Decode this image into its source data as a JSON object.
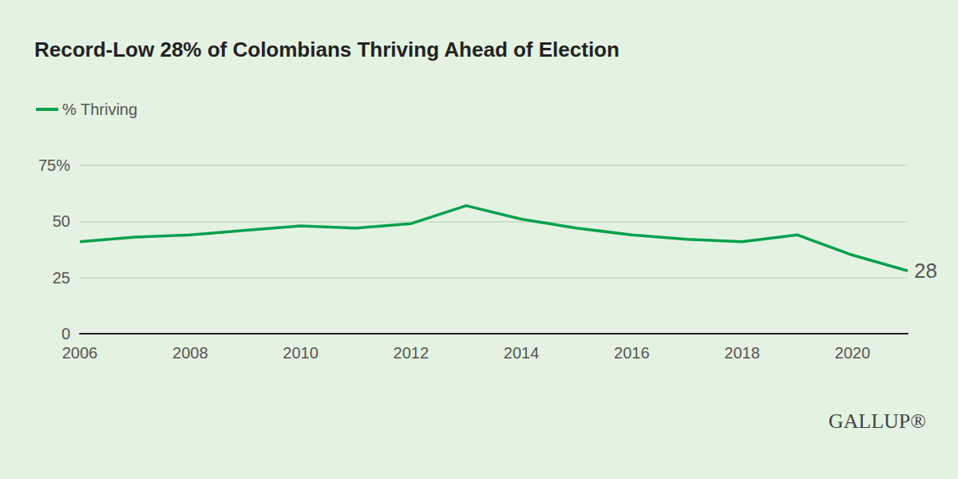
{
  "chart_data": {
    "type": "line",
    "title": "Record-Low 28% of Colombians Thriving Ahead of Election",
    "source": "GALLUP®",
    "x": [
      2006,
      2007,
      2008,
      2009,
      2010,
      2011,
      2012,
      2013,
      2014,
      2015,
      2016,
      2017,
      2018,
      2019,
      2020,
      2021
    ],
    "series": [
      {
        "name": "% Thriving",
        "color": "#00a04c",
        "values": [
          41,
          43,
          44,
          46,
          48,
          47,
          49,
          57,
          51,
          47,
          44,
          42,
          41,
          44,
          35,
          28
        ]
      }
    ],
    "xlim": [
      2006,
      2021
    ],
    "xticks": [
      2006,
      2008,
      2010,
      2012,
      2014,
      2016,
      2018,
      2020
    ],
    "ylim": [
      0,
      75
    ],
    "yticks": [
      0,
      25,
      50,
      {
        "value": 75,
        "label": "75%"
      }
    ],
    "grid": true,
    "legend": "top-left",
    "annotations": [
      {
        "x": 2021,
        "y": 28,
        "text": "28"
      }
    ]
  }
}
